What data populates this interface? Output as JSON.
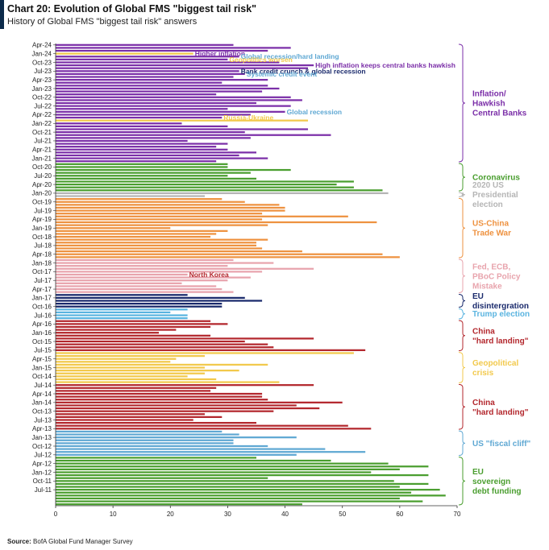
{
  "header": {
    "title": "Chart 20: Evolution of Global FMS \"biggest tail risk\"",
    "subtitle": "History of Global FMS \"biggest tail risk\" answers"
  },
  "footer": {
    "source_label": "Source:",
    "source_text": "BofA Global Fund Manager Survey"
  },
  "chart_data": {
    "type": "bar",
    "orientation": "horizontal",
    "xlim": [
      0,
      70
    ],
    "xticks": [
      0,
      10,
      20,
      30,
      40,
      50,
      60,
      70
    ],
    "grid": false,
    "y_tick_labels": [
      "Apr-24",
      "Jan-24",
      "Oct-23",
      "Jul-23",
      "Apr-23",
      "Jan-23",
      "Oct-22",
      "Jul-22",
      "Apr-22",
      "Jan-22",
      "Oct-21",
      "Jul-21",
      "Apr-21",
      "Jan-21",
      "Oct-20",
      "Jul-20",
      "Apr-20",
      "Jan-20",
      "Oct-19",
      "Jul-19",
      "Apr-19",
      "Jan-19",
      "Oct-18",
      "Jul-18",
      "Apr-18",
      "Jan-18",
      "Oct-17",
      "Jul-17",
      "Apr-17",
      "Jan-17",
      "Oct-16",
      "Jul-16",
      "Apr-16",
      "Jan-16",
      "Oct-15",
      "Jul-15",
      "Apr-15",
      "Jan-15",
      "Oct-14",
      "Jul-14",
      "Apr-14",
      "Jan-14",
      "Oct-13",
      "Jul-13",
      "Apr-13",
      "Jan-13",
      "Oct-12",
      "Jul-12",
      "Apr-12",
      "Jan-12",
      "Oct-11",
      "Jul-11"
    ],
    "colors": {
      "inflation": "#7b2fa8",
      "coronavirus": "#4a9e2f",
      "election2020": "#b5b5b5",
      "trade": "#ee9240",
      "policy": "#e8a4ad",
      "eu": "#1a2a6c",
      "trump": "#5ab4e0",
      "china": "#b3272d",
      "geopolitical": "#f2c94c",
      "fiscal": "#5fa8d3",
      "sovereign": "#4a9e2f"
    },
    "bars": [
      {
        "v": 31.0,
        "c": "inflation"
      },
      {
        "v": 41.0,
        "c": "inflation"
      },
      {
        "v": 37.0,
        "c": "inflation"
      },
      {
        "v": 24.0,
        "c": "geopolitical"
      },
      {
        "v": 32.0,
        "c": "inflation"
      },
      {
        "v": 30.0,
        "c": "inflation"
      },
      {
        "v": 39.0,
        "c": "inflation"
      },
      {
        "v": 45.0,
        "c": "inflation"
      },
      {
        "v": 44.0,
        "c": "inflation"
      },
      {
        "v": 32.0,
        "c": "inflation"
      },
      {
        "v": 33.0,
        "c": "inflation"
      },
      {
        "v": 31.0,
        "c": "inflation"
      },
      {
        "v": 37.0,
        "c": "inflation"
      },
      {
        "v": 29.0,
        "c": "inflation"
      },
      {
        "v": 37.0,
        "c": "inflation"
      },
      {
        "v": 39.0,
        "c": "inflation"
      },
      {
        "v": 36.0,
        "c": "inflation"
      },
      {
        "v": 28.0,
        "c": "inflation"
      },
      {
        "v": 41.0,
        "c": "inflation"
      },
      {
        "v": 43.0,
        "c": "inflation"
      },
      {
        "v": 35.0,
        "c": "inflation"
      },
      {
        "v": 41.0,
        "c": "inflation"
      },
      {
        "v": 30.0,
        "c": "inflation"
      },
      {
        "v": 40.0,
        "c": "inflation"
      },
      {
        "v": 34.0,
        "c": "inflation"
      },
      {
        "v": 29.0,
        "c": "inflation"
      },
      {
        "v": 44.0,
        "c": "geopolitical"
      },
      {
        "v": 22.0,
        "c": "inflation"
      },
      {
        "v": 30.0,
        "c": "inflation"
      },
      {
        "v": 44.0,
        "c": "inflation"
      },
      {
        "v": 33.0,
        "c": "inflation"
      },
      {
        "v": 48.0,
        "c": "inflation"
      },
      {
        "v": 34.0,
        "c": "inflation"
      },
      {
        "v": 23.0,
        "c": "inflation"
      },
      {
        "v": 30.0,
        "c": "inflation"
      },
      {
        "v": 28.0,
        "c": "inflation"
      },
      {
        "v": 30.0,
        "c": "inflation"
      },
      {
        "v": 35.0,
        "c": "inflation"
      },
      {
        "v": 32.0,
        "c": "inflation"
      },
      {
        "v": 37.0,
        "c": "inflation"
      },
      {
        "v": 28.0,
        "c": "inflation"
      },
      {
        "v": 30.0,
        "c": "coronavirus"
      },
      {
        "v": 30.0,
        "c": "coronavirus"
      },
      {
        "v": 41.0,
        "c": "coronavirus"
      },
      {
        "v": 34.0,
        "c": "coronavirus"
      },
      {
        "v": 30.0,
        "c": "coronavirus"
      },
      {
        "v": 35.0,
        "c": "coronavirus"
      },
      {
        "v": 52.0,
        "c": "coronavirus"
      },
      {
        "v": 49.0,
        "c": "coronavirus"
      },
      {
        "v": 52.0,
        "c": "coronavirus"
      },
      {
        "v": 57.0,
        "c": "coronavirus"
      },
      {
        "v": 58.0,
        "c": "election2020"
      },
      {
        "v": 26.0,
        "c": "election2020"
      },
      {
        "v": 29.0,
        "c": "trade"
      },
      {
        "v": 33.0,
        "c": "trade"
      },
      {
        "v": 39.0,
        "c": "trade"
      },
      {
        "v": 40.0,
        "c": "trade"
      },
      {
        "v": 40.0,
        "c": "trade"
      },
      {
        "v": 36.0,
        "c": "trade"
      },
      {
        "v": 51.0,
        "c": "trade"
      },
      {
        "v": 36.0,
        "c": "trade"
      },
      {
        "v": 56.0,
        "c": "trade"
      },
      {
        "v": 37.0,
        "c": "trade"
      },
      {
        "v": 20.0,
        "c": "trade"
      },
      {
        "v": 30.0,
        "c": "trade"
      },
      {
        "v": 28.0,
        "c": "trade"
      },
      {
        "v": 27.0,
        "c": "trade"
      },
      {
        "v": 37.0,
        "c": "trade"
      },
      {
        "v": 35.0,
        "c": "trade"
      },
      {
        "v": 35.0,
        "c": "trade"
      },
      {
        "v": 36.0,
        "c": "trade"
      },
      {
        "v": 43.0,
        "c": "trade"
      },
      {
        "v": 57.0,
        "c": "trade"
      },
      {
        "v": 60.0,
        "c": "trade"
      },
      {
        "v": 31.0,
        "c": "policy"
      },
      {
        "v": 38.0,
        "c": "policy"
      },
      {
        "v": 30.0,
        "c": "policy"
      },
      {
        "v": 45.0,
        "c": "policy"
      },
      {
        "v": 36.0,
        "c": "policy"
      },
      {
        "v": 23.0,
        "c": "policy"
      },
      {
        "v": 34.0,
        "c": "policy"
      },
      {
        "v": 30.0,
        "c": "policy"
      },
      {
        "v": 22.0,
        "c": "policy"
      },
      {
        "v": 28.0,
        "c": "policy"
      },
      {
        "v": 29.0,
        "c": "policy"
      },
      {
        "v": 31.0,
        "c": "policy"
      },
      {
        "v": 23.0,
        "c": "eu"
      },
      {
        "v": 33.0,
        "c": "eu"
      },
      {
        "v": 36.0,
        "c": "eu"
      },
      {
        "v": 29.0,
        "c": "eu"
      },
      {
        "v": 29.0,
        "c": "eu"
      },
      {
        "v": 23.0,
        "c": "trump"
      },
      {
        "v": 20.0,
        "c": "trump"
      },
      {
        "v": 23.0,
        "c": "trump"
      },
      {
        "v": 23.0,
        "c": "trump"
      },
      {
        "v": 27.0,
        "c": "china"
      },
      {
        "v": 30.0,
        "c": "china"
      },
      {
        "v": 27.0,
        "c": "china"
      },
      {
        "v": 21.0,
        "c": "china"
      },
      {
        "v": 18.0,
        "c": "china"
      },
      {
        "v": 27.0,
        "c": "china"
      },
      {
        "v": 45.0,
        "c": "china"
      },
      {
        "v": 33.0,
        "c": "china"
      },
      {
        "v": 37.0,
        "c": "china"
      },
      {
        "v": 38.0,
        "c": "china"
      },
      {
        "v": 54.0,
        "c": "china"
      },
      {
        "v": 52.0,
        "c": "geopolitical"
      },
      {
        "v": 26.0,
        "c": "geopolitical"
      },
      {
        "v": 21.0,
        "c": "geopolitical"
      },
      {
        "v": 20.0,
        "c": "geopolitical"
      },
      {
        "v": 37.0,
        "c": "geopolitical"
      },
      {
        "v": 26.0,
        "c": "geopolitical"
      },
      {
        "v": 32.0,
        "c": "geopolitical"
      },
      {
        "v": 26.0,
        "c": "geopolitical"
      },
      {
        "v": 23.0,
        "c": "geopolitical"
      },
      {
        "v": 28.0,
        "c": "geopolitical"
      },
      {
        "v": 39.0,
        "c": "geopolitical"
      },
      {
        "v": 45.0,
        "c": "china"
      },
      {
        "v": 28.0,
        "c": "china"
      },
      {
        "v": 27.0,
        "c": "china"
      },
      {
        "v": 36.0,
        "c": "china"
      },
      {
        "v": 36.0,
        "c": "china"
      },
      {
        "v": 37.0,
        "c": "china"
      },
      {
        "v": 50.0,
        "c": "china"
      },
      {
        "v": 42.0,
        "c": "china"
      },
      {
        "v": 46.0,
        "c": "china"
      },
      {
        "v": 38.0,
        "c": "china"
      },
      {
        "v": 26.0,
        "c": "china"
      },
      {
        "v": 29.0,
        "c": "china"
      },
      {
        "v": 24.0,
        "c": "china"
      },
      {
        "v": 35.0,
        "c": "china"
      },
      {
        "v": 51.0,
        "c": "china"
      },
      {
        "v": 55.0,
        "c": "china"
      },
      {
        "v": 29.0,
        "c": "fiscal"
      },
      {
        "v": 32.0,
        "c": "fiscal"
      },
      {
        "v": 42.0,
        "c": "fiscal"
      },
      {
        "v": 31.0,
        "c": "fiscal"
      },
      {
        "v": 31.0,
        "c": "fiscal"
      },
      {
        "v": 37.0,
        "c": "fiscal"
      },
      {
        "v": 47.0,
        "c": "fiscal"
      },
      {
        "v": 54.0,
        "c": "fiscal"
      },
      {
        "v": 42.0,
        "c": "fiscal"
      },
      {
        "v": 35.0,
        "c": "sovereign"
      },
      {
        "v": 48.0,
        "c": "sovereign"
      },
      {
        "v": 58.0,
        "c": "sovereign"
      },
      {
        "v": 65.0,
        "c": "sovereign"
      },
      {
        "v": 60.0,
        "c": "sovereign"
      },
      {
        "v": 55.0,
        "c": "sovereign"
      },
      {
        "v": 65.0,
        "c": "sovereign"
      },
      {
        "v": 37.0,
        "c": "sovereign"
      },
      {
        "v": 59.0,
        "c": "sovereign"
      },
      {
        "v": 65.0,
        "c": "sovereign"
      },
      {
        "v": 60.0,
        "c": "sovereign"
      },
      {
        "v": 67.0,
        "c": "sovereign"
      },
      {
        "v": 62.0,
        "c": "sovereign"
      },
      {
        "v": 68.0,
        "c": "sovereign"
      },
      {
        "v": 60.0,
        "c": "sovereign"
      },
      {
        "v": 64.0,
        "c": "sovereign"
      },
      {
        "v": 43.0,
        "c": "sovereign"
      }
    ],
    "eras": [
      {
        "label": [
          "Inflation/",
          "Hawkish",
          "Central Banks"
        ],
        "c": "inflation",
        "from": 0,
        "to": 40
      },
      {
        "label": [
          "Coronavirus"
        ],
        "c": "coronavirus",
        "from": 41,
        "to": 50
      },
      {
        "label": [
          "2020 US",
          "Presidential",
          "election"
        ],
        "c": "election2020",
        "from": 51,
        "to": 52
      },
      {
        "label": [
          "US-China",
          "Trade War"
        ],
        "c": "trade",
        "from": 53,
        "to": 73
      },
      {
        "label": [
          "Fed, ECB,",
          "PBoC Policy",
          "Mistake"
        ],
        "c": "policy",
        "from": 74,
        "to": 85
      },
      {
        "label": [
          "EU",
          "disintergration"
        ],
        "c": "eu",
        "from": 86,
        "to": 90
      },
      {
        "label": [
          "Trump election"
        ],
        "c": "trump",
        "from": 91,
        "to": 94
      },
      {
        "label": [
          "China",
          "\"hard landing\""
        ],
        "c": "china",
        "from": 95,
        "to": 105
      },
      {
        "label": [
          "Geopolitical",
          "crisis"
        ],
        "c": "geopolitical",
        "from": 106,
        "to": 116
      },
      {
        "label": [
          "China",
          "\"hard landing\""
        ],
        "c": "china",
        "from": 117,
        "to": 132
      },
      {
        "label": [
          "US \"fiscal cliff\""
        ],
        "c": "fiscal",
        "from": 133,
        "to": 141
      },
      {
        "label": [
          "EU",
          "sovereign",
          "debt funding"
        ],
        "c": "sovereign",
        "from": 142,
        "to": 158
      }
    ],
    "annotations": [
      {
        "text": "Higher inflation",
        "bar": 3,
        "c": "inflation"
      },
      {
        "text": "Global recession/hard landing",
        "bar": 4,
        "c": "fiscal"
      },
      {
        "text": "Geopolitics worsen",
        "bar": 5,
        "c": "geopolitical"
      },
      {
        "text": "High inflation keeps central banks hawkish",
        "bar": 7,
        "c": "inflation"
      },
      {
        "text": "Bank credit crunch & global recession",
        "bar": 9,
        "c": "eu"
      },
      {
        "text": "Systemic credit event",
        "bar": 10,
        "c": "fiscal"
      },
      {
        "text": "Global recession",
        "bar": 23,
        "c": "fiscal"
      },
      {
        "text": "Russia-Ukraine",
        "bar": 25,
        "c": "geopolitical"
      },
      {
        "text": "North Korea",
        "bar": 79,
        "c": "china"
      }
    ]
  }
}
